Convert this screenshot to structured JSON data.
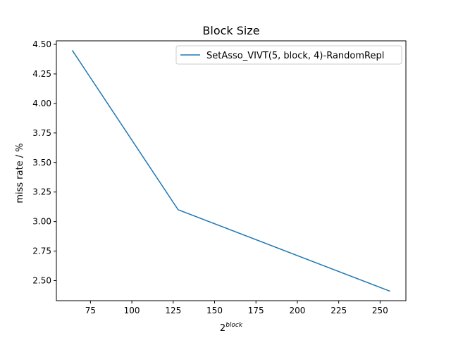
{
  "chart_data": {
    "type": "line",
    "title": "Block Size",
    "xlabel": {
      "base": "2",
      "exponent": "block"
    },
    "ylabel": "miss rate / %",
    "xlim": [
      54.4,
      265.6
    ],
    "ylim": [
      2.33,
      4.53
    ],
    "xticks": [
      75,
      100,
      125,
      150,
      175,
      200,
      225,
      250
    ],
    "xtick_labels": [
      "75",
      "100",
      "125",
      "150",
      "175",
      "200",
      "225",
      "250"
    ],
    "yticks": [
      2.5,
      2.75,
      3.0,
      3.25,
      3.5,
      3.75,
      4.0,
      4.25,
      4.5
    ],
    "ytick_labels": [
      "2.50",
      "2.75",
      "3.00",
      "3.25",
      "3.50",
      "3.75",
      "4.00",
      "4.25",
      "4.50"
    ],
    "grid": false,
    "legend_position": "top-right",
    "series": [
      {
        "name": "SetAsso_VIVT(5, block, 4)-RandomRepl",
        "color": "#1f77b4",
        "x": [
          64,
          128,
          256
        ],
        "y": [
          4.45,
          3.1,
          2.41
        ]
      }
    ]
  }
}
